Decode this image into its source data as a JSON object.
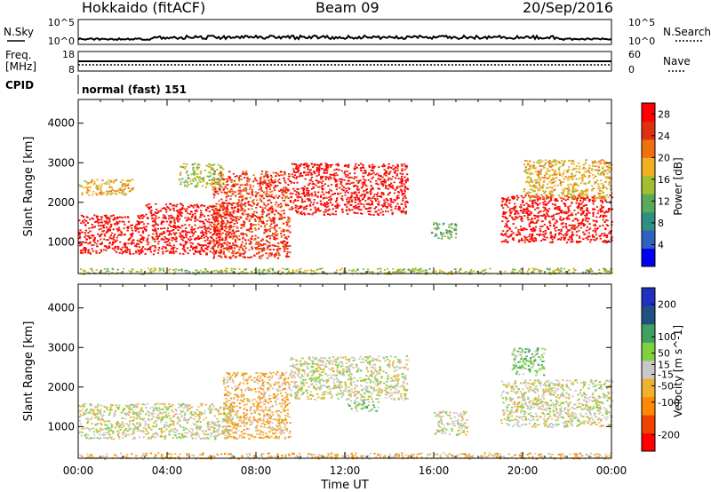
{
  "header": {
    "station": "Hokkaido (fitACF)",
    "beam": "Beam 09",
    "date": "20/Sep/2016"
  },
  "left_labels": {
    "nsky": "N.Sky",
    "freq_line1": "Freq.",
    "freq_line2": "[MHz]",
    "cpid": "CPID"
  },
  "right_labels": {
    "nsearch": "N.Search",
    "nave": "Nave"
  },
  "cpid_text": "normal (fast) 151",
  "noise_panel": {
    "left_ticks": [
      "10^5",
      "10^0"
    ],
    "right_ticks": [
      "10^5",
      "10^0"
    ]
  },
  "freq_panel": {
    "left_ticks": [
      "18",
      "8"
    ],
    "right_ticks": [
      "60",
      "0"
    ]
  },
  "time_axis": {
    "label": "Time UT",
    "ticks": [
      "00:00",
      "04:00",
      "08:00",
      "12:00",
      "16:00",
      "20:00",
      "00:00"
    ]
  },
  "colors": {
    "power": [
      "#0000ee",
      "#3060c0",
      "#2f8f80",
      "#5aaa5a",
      "#a0c030",
      "#f0b020",
      "#f07010",
      "#e03010",
      "#ff0000"
    ],
    "velocity": [
      "#ff0000",
      "#ee4400",
      "#ff8800",
      "#f0b030",
      "#c8c8c8",
      "#80d040",
      "#40a060",
      "#205080",
      "#2030c0"
    ]
  },
  "chart_data": [
    {
      "type": "heatmap",
      "name": "power",
      "ylabel": "Slant Range [km]",
      "xlabel": "",
      "y_ticks": [
        "1000",
        "2000",
        "3000",
        "4000"
      ],
      "ylim": [
        200,
        4600
      ],
      "xlim_hours": [
        0,
        24
      ],
      "colorbar_label": "Power [dB]",
      "colorbar_ticks": [
        "4",
        "8",
        "12",
        "16",
        "20",
        "24",
        "28"
      ],
      "colorbar_range": [
        0,
        30
      ],
      "regions": [
        {
          "t": [
            0.0,
            3.0
          ],
          "r": [
            700,
            1700
          ],
          "level": 8
        },
        {
          "t": [
            3.0,
            7.0
          ],
          "r": [
            700,
            2000
          ],
          "level": 8
        },
        {
          "t": [
            6.0,
            9.5
          ],
          "r": [
            600,
            2800
          ],
          "level": 7
        },
        {
          "t": [
            9.5,
            14.8
          ],
          "r": [
            1700,
            3000
          ],
          "level": 8
        },
        {
          "t": [
            4.5,
            6.5
          ],
          "r": [
            2400,
            3000
          ],
          "level": 4
        },
        {
          "t": [
            0.0,
            2.5
          ],
          "r": [
            2200,
            2600
          ],
          "level": 5
        },
        {
          "t": [
            15.8,
            17.0
          ],
          "r": [
            1100,
            1500
          ],
          "level": 3
        },
        {
          "t": [
            19.0,
            24.0
          ],
          "r": [
            1000,
            2200
          ],
          "level": 8
        },
        {
          "t": [
            20.0,
            24.0
          ],
          "r": [
            2100,
            3100
          ],
          "level": 5
        },
        {
          "t": [
            0.0,
            24.0
          ],
          "r": [
            200,
            350
          ],
          "level": 4
        }
      ]
    },
    {
      "type": "heatmap",
      "name": "velocity",
      "ylabel": "Slant Range [km]",
      "xlabel": "Time UT",
      "y_ticks": [
        "1000",
        "2000",
        "3000",
        "4000"
      ],
      "ylim": [
        200,
        4600
      ],
      "xlim_hours": [
        0,
        24
      ],
      "colorbar_label": "Velocity [m s^-1]",
      "colorbar_ticks": [
        "-200",
        "-100",
        "-50",
        "-15",
        "15",
        "50",
        "100",
        "200"
      ],
      "colorbar_range": [
        -250,
        250
      ],
      "regions": [
        {
          "t": [
            0.0,
            7.0
          ],
          "r": [
            700,
            1600
          ],
          "level": 4
        },
        {
          "t": [
            6.5,
            9.5
          ],
          "r": [
            700,
            2400
          ],
          "level": 3
        },
        {
          "t": [
            9.5,
            14.8
          ],
          "r": [
            1700,
            2800
          ],
          "level": 4
        },
        {
          "t": [
            12.0,
            13.5
          ],
          "r": [
            1400,
            1700
          ],
          "level": 5
        },
        {
          "t": [
            16.0,
            17.5
          ],
          "r": [
            800,
            1400
          ],
          "level": 4
        },
        {
          "t": [
            19.0,
            24.0
          ],
          "r": [
            1000,
            2200
          ],
          "level": 4
        },
        {
          "t": [
            19.5,
            21.0
          ],
          "r": [
            2300,
            3000
          ],
          "level": 5
        },
        {
          "t": [
            0.0,
            24.0
          ],
          "r": [
            200,
            350
          ],
          "level": 3
        }
      ]
    }
  ]
}
